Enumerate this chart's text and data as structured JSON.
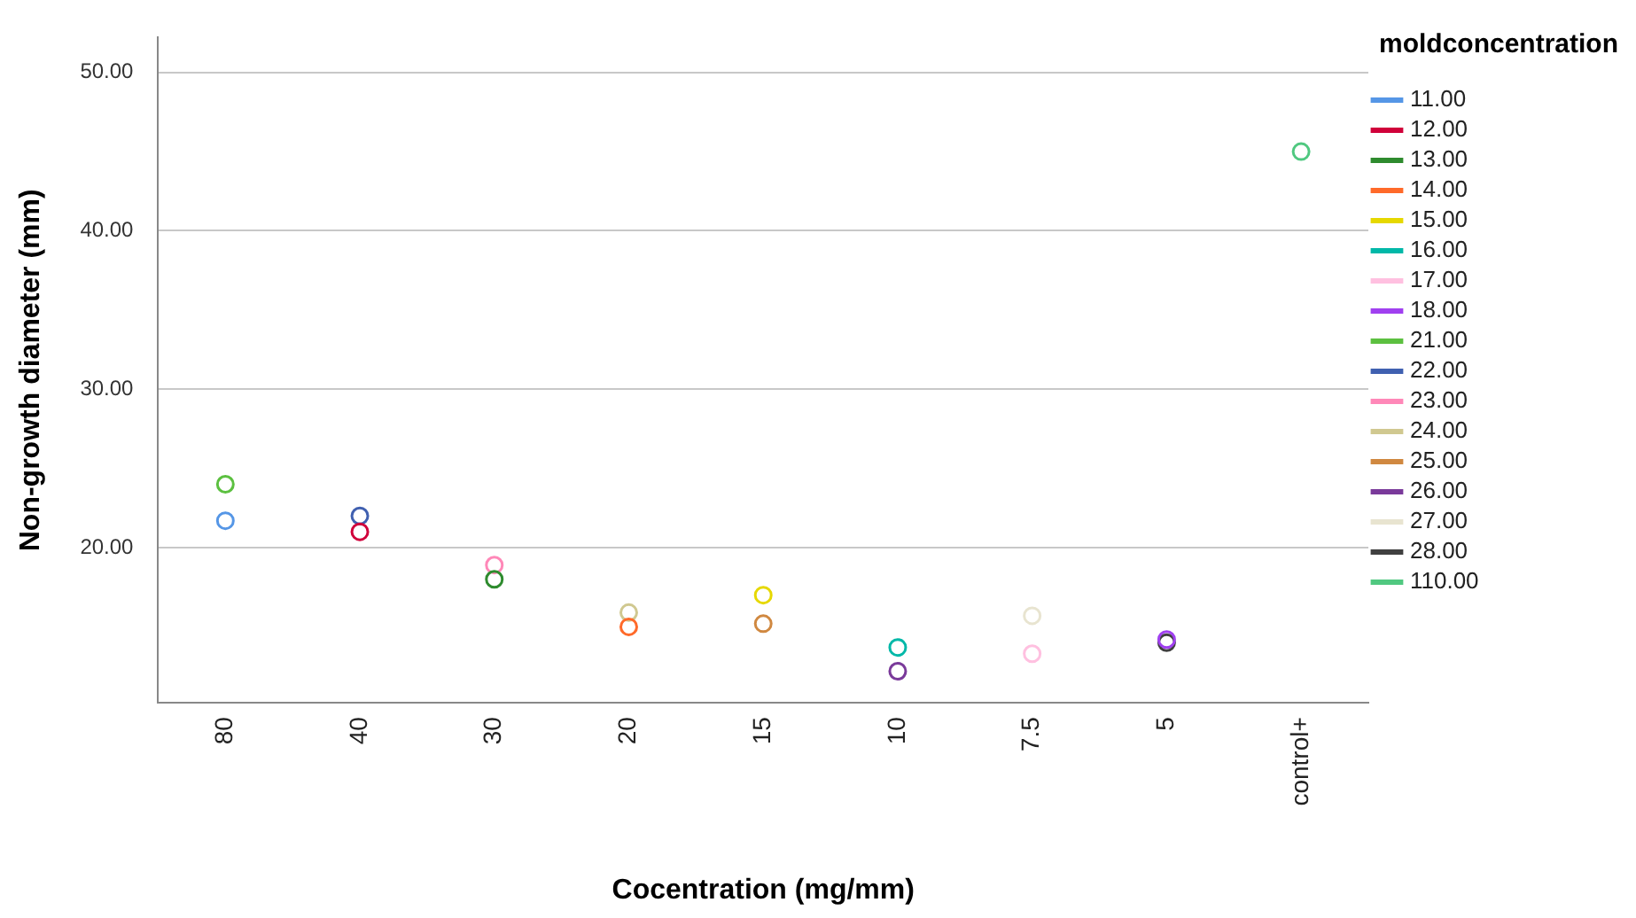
{
  "chart_data": {
    "type": "scatter",
    "xlabel": "Cocentration (mg/mm)",
    "ylabel": "Non-growth diameter (mm)",
    "legend_title": "moldconcentration",
    "categories": [
      "80",
      "40",
      "30",
      "20",
      "15",
      "10",
      "7.5",
      "5",
      "control+"
    ],
    "ylim": [
      10.2,
      52.2
    ],
    "yticks": [
      {
        "value": 20,
        "label": "20.00"
      },
      {
        "value": 30,
        "label": "30.00"
      },
      {
        "value": 40,
        "label": "40.00"
      },
      {
        "value": 50,
        "label": "50.00"
      }
    ],
    "grid": "y",
    "legend": "right",
    "marker": "circle",
    "series": [
      {
        "name": "11.00",
        "color": "#5596e6",
        "values": [
          21.7,
          null,
          null,
          null,
          null,
          null,
          null,
          null,
          null
        ]
      },
      {
        "name": "12.00",
        "color": "#d0003a",
        "values": [
          null,
          21.0,
          null,
          null,
          null,
          null,
          null,
          null,
          null
        ]
      },
      {
        "name": "13.00",
        "color": "#2e8b2e",
        "values": [
          null,
          null,
          18.0,
          null,
          null,
          null,
          null,
          null,
          null
        ]
      },
      {
        "name": "14.00",
        "color": "#ff6a2a",
        "values": [
          null,
          null,
          null,
          15.0,
          null,
          null,
          null,
          null,
          null
        ]
      },
      {
        "name": "15.00",
        "color": "#e6d800",
        "values": [
          null,
          null,
          null,
          null,
          17.0,
          null,
          null,
          null,
          null
        ]
      },
      {
        "name": "16.00",
        "color": "#00b8a8",
        "values": [
          null,
          null,
          null,
          null,
          null,
          13.7,
          null,
          null,
          null
        ]
      },
      {
        "name": "17.00",
        "color": "#ffc0e0",
        "values": [
          null,
          null,
          null,
          null,
          null,
          null,
          13.3,
          null,
          null
        ]
      },
      {
        "name": "18.00",
        "color": "#a040f0",
        "values": [
          null,
          null,
          null,
          null,
          null,
          null,
          null,
          14.2,
          null
        ]
      },
      {
        "name": "21.00",
        "color": "#5cc040",
        "values": [
          24.0,
          null,
          null,
          null,
          null,
          null,
          null,
          null,
          null
        ]
      },
      {
        "name": "22.00",
        "color": "#4060b0",
        "values": [
          null,
          22.0,
          null,
          null,
          null,
          null,
          null,
          null,
          null
        ]
      },
      {
        "name": "23.00",
        "color": "#ff88b8",
        "values": [
          null,
          null,
          18.9,
          null,
          null,
          null,
          null,
          null,
          null
        ]
      },
      {
        "name": "24.00",
        "color": "#d0c890",
        "values": [
          null,
          null,
          null,
          15.9,
          null,
          null,
          null,
          null,
          null
        ]
      },
      {
        "name": "25.00",
        "color": "#d08840",
        "values": [
          null,
          null,
          null,
          null,
          15.2,
          null,
          null,
          null,
          null
        ]
      },
      {
        "name": "26.00",
        "color": "#7a3a9a",
        "values": [
          null,
          null,
          null,
          null,
          null,
          12.2,
          null,
          null,
          null
        ]
      },
      {
        "name": "27.00",
        "color": "#e8e4d0",
        "values": [
          null,
          null,
          null,
          null,
          null,
          null,
          15.7,
          null,
          null
        ]
      },
      {
        "name": "28.00",
        "color": "#404040",
        "values": [
          null,
          null,
          null,
          null,
          null,
          null,
          null,
          14.0,
          null
        ]
      },
      {
        "name": "110.00",
        "color": "#50c880",
        "values": [
          null,
          null,
          null,
          null,
          null,
          null,
          null,
          null,
          45.0
        ]
      }
    ]
  }
}
